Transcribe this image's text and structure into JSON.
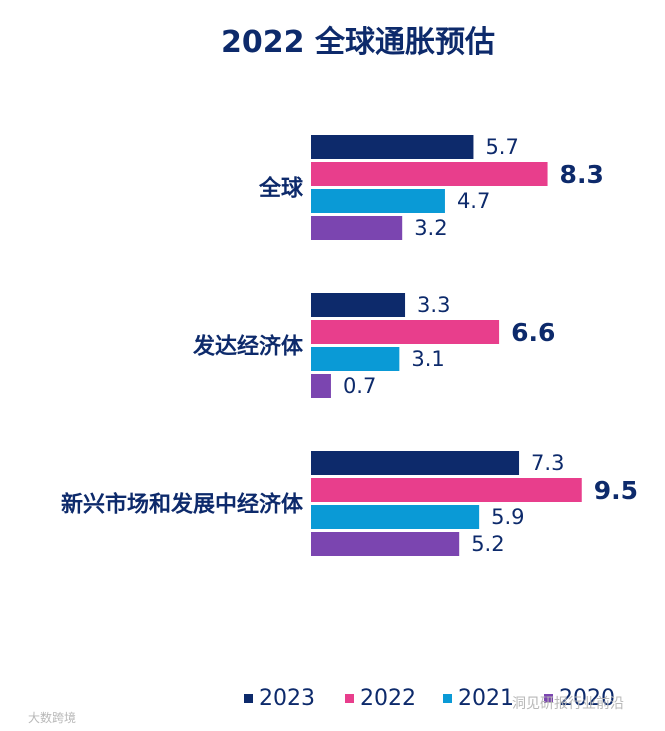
{
  "chart_data": {
    "type": "bar",
    "orientation": "horizontal",
    "title": "2022 全球通胀预估",
    "categories": [
      "全球",
      "发达经济体",
      "新兴市场和发展中经济体"
    ],
    "series": [
      {
        "name": "2023",
        "color": "#0d2a6b",
        "values": [
          5.7,
          3.3,
          7.3
        ],
        "highlight": false
      },
      {
        "name": "2022",
        "color": "#e83e8c",
        "values": [
          8.3,
          6.6,
          9.5
        ],
        "highlight": true
      },
      {
        "name": "2021",
        "color": "#0a9ad6",
        "values": [
          4.7,
          3.1,
          5.9
        ],
        "highlight": false
      },
      {
        "name": "2020",
        "color": "#7b45b0",
        "values": [
          3.2,
          0.7,
          5.2
        ],
        "highlight": false
      }
    ],
    "xlim": [
      0,
      10
    ],
    "xlabel": "",
    "ylabel": "",
    "grid": false,
    "legend": "bottom"
  },
  "watermarks": [
    "大数跨境",
    "洞见研报行业前沿"
  ]
}
